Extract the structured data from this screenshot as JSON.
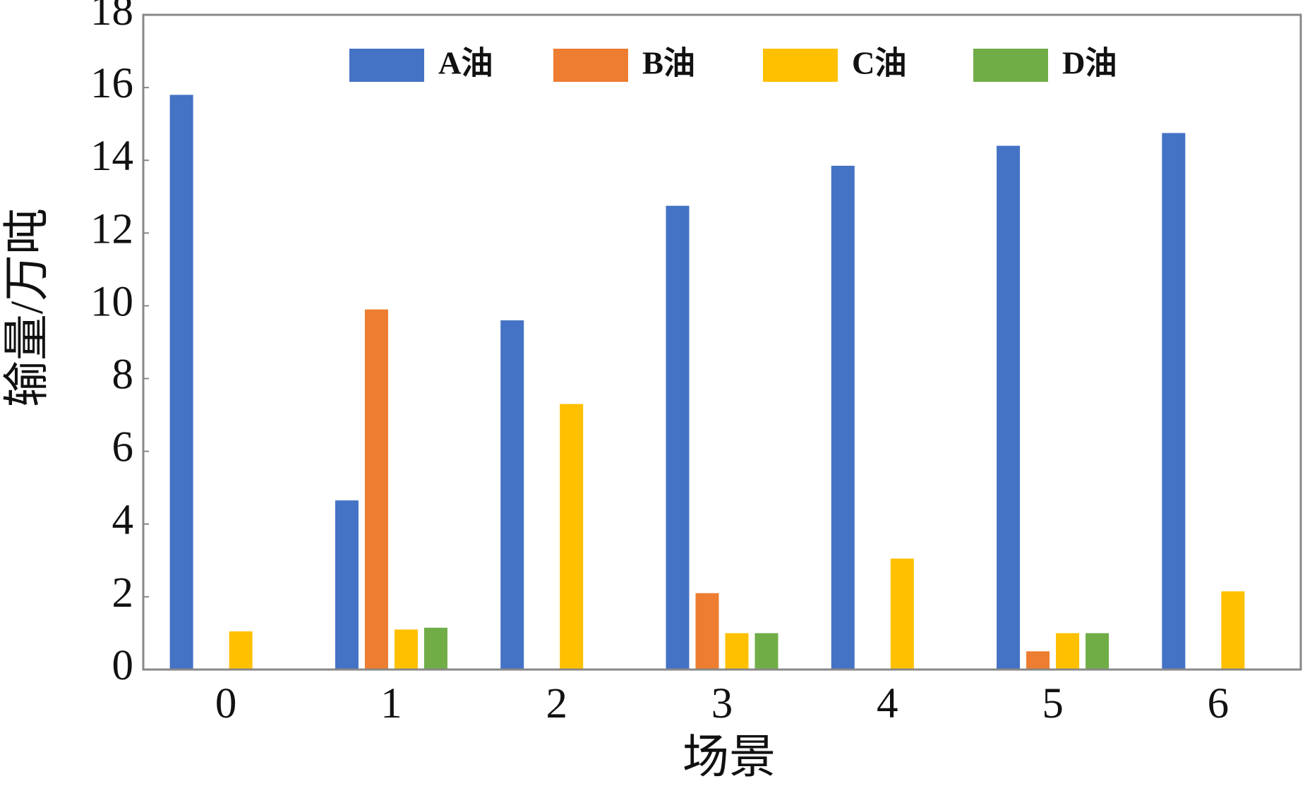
{
  "chart_data": {
    "type": "bar",
    "xlabel": "场景",
    "ylabel": "输量/万吨",
    "categories": [
      "0",
      "1",
      "2",
      "3",
      "4",
      "5",
      "6"
    ],
    "series": [
      {
        "name": "A油",
        "color": "#4472c4",
        "values": [
          15.8,
          4.65,
          9.6,
          12.75,
          13.85,
          14.4,
          14.75
        ]
      },
      {
        "name": "B油",
        "color": "#ed7d31",
        "values": [
          0,
          9.9,
          0,
          2.1,
          0,
          0.5,
          0
        ]
      },
      {
        "name": "C油",
        "color": "#ffc000",
        "values": [
          1.05,
          1.1,
          7.3,
          1,
          3.05,
          1,
          2.15
        ]
      },
      {
        "name": "D油",
        "color": "#70ad47",
        "values": [
          0,
          1.15,
          0,
          1,
          0,
          1,
          0
        ]
      }
    ],
    "ylim": [
      0,
      18
    ],
    "yticks": [
      0,
      2,
      4,
      6,
      8,
      10,
      12,
      14,
      16,
      18
    ],
    "grid": false,
    "legend": "top"
  }
}
